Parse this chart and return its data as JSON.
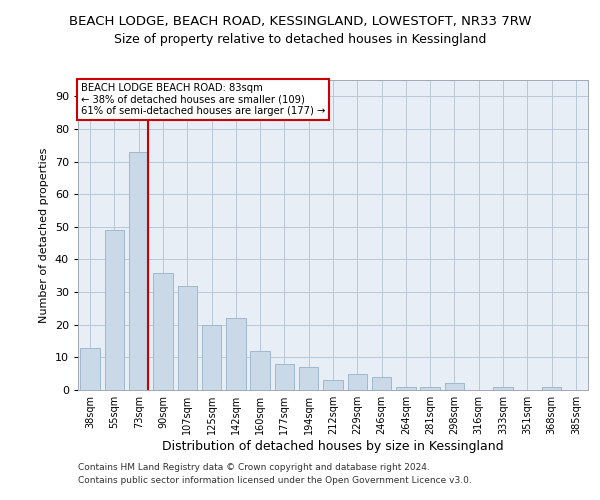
{
  "title_line1": "BEACH LODGE, BEACH ROAD, KESSINGLAND, LOWESTOFT, NR33 7RW",
  "title_line2": "Size of property relative to detached houses in Kessingland",
  "xlabel": "Distribution of detached houses by size in Kessingland",
  "ylabel": "Number of detached properties",
  "categories": [
    "38sqm",
    "55sqm",
    "73sqm",
    "90sqm",
    "107sqm",
    "125sqm",
    "142sqm",
    "160sqm",
    "177sqm",
    "194sqm",
    "212sqm",
    "229sqm",
    "246sqm",
    "264sqm",
    "281sqm",
    "298sqm",
    "316sqm",
    "333sqm",
    "351sqm",
    "368sqm",
    "385sqm"
  ],
  "values": [
    13,
    49,
    73,
    36,
    32,
    20,
    22,
    12,
    8,
    7,
    3,
    5,
    4,
    1,
    1,
    2,
    0,
    1,
    0,
    1,
    0
  ],
  "bar_color": "#c9d9e8",
  "bar_edge_color": "#a0b8cc",
  "vline_color": "#cc0000",
  "ylim": [
    0,
    95
  ],
  "yticks": [
    0,
    10,
    20,
    30,
    40,
    50,
    60,
    70,
    80,
    90
  ],
  "annotation_title": "BEACH LODGE BEACH ROAD: 83sqm",
  "annotation_line1": "← 38% of detached houses are smaller (109)",
  "annotation_line2": "61% of semi-detached houses are larger (177) →",
  "annotation_box_color": "#ffffff",
  "annotation_box_edge": "#cc0000",
  "footer_line1": "Contains HM Land Registry data © Crown copyright and database right 2024.",
  "footer_line2": "Contains public sector information licensed under the Open Government Licence v3.0.",
  "bg_color": "#ffffff",
  "plot_bg_color": "#e8eef5",
  "grid_color": "#b8c8d8",
  "title_fontsize": 9.5,
  "subtitle_fontsize": 9,
  "bar_width": 0.8
}
